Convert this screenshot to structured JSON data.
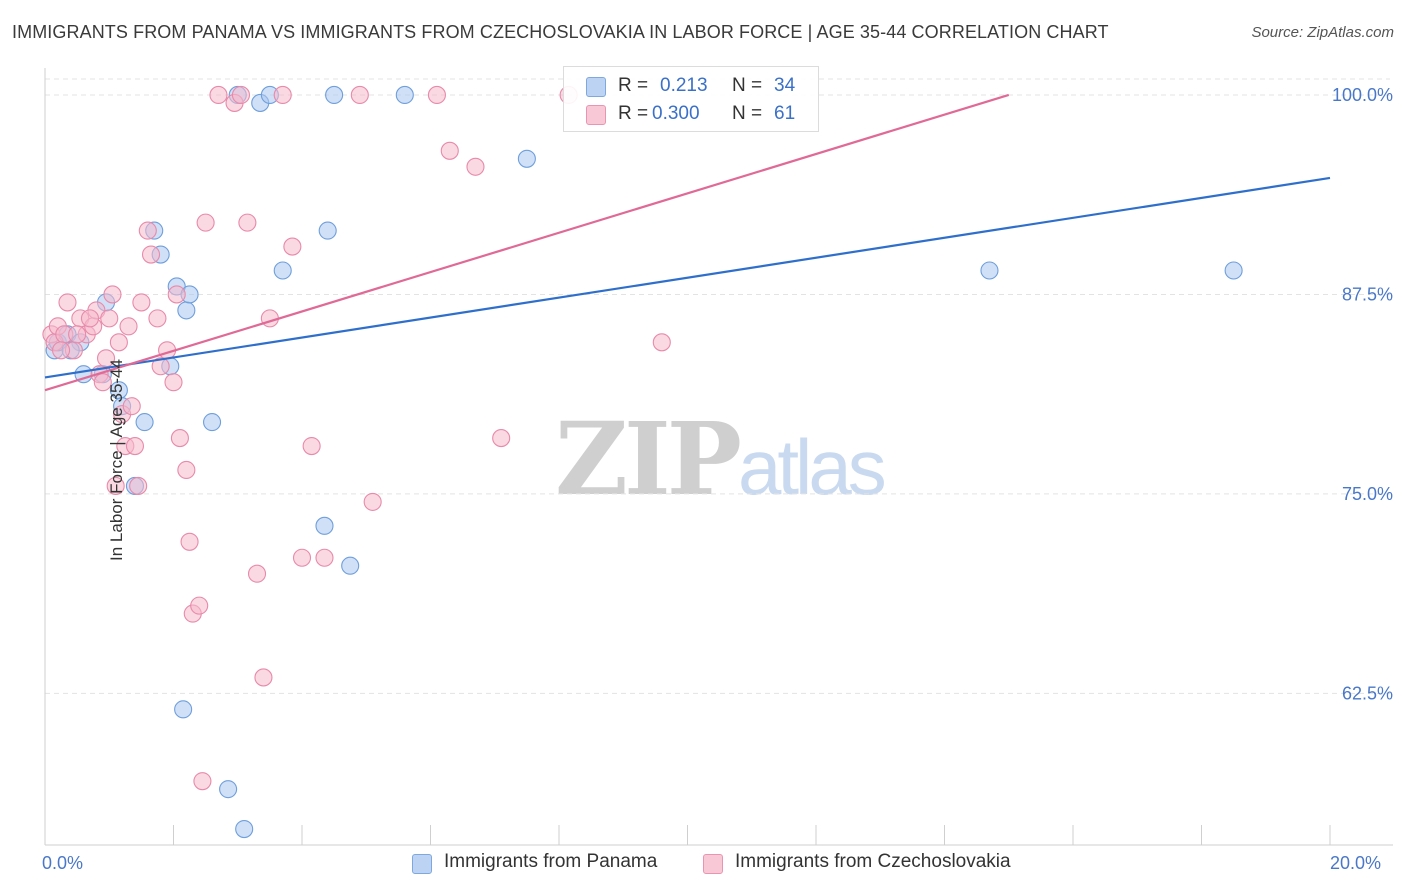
{
  "header": {
    "title": "IMMIGRANTS FROM PANAMA VS IMMIGRANTS FROM CZECHOSLOVAKIA IN LABOR FORCE | AGE 35-44 CORRELATION CHART",
    "source": "Source: ZipAtlas.com"
  },
  "watermark": {
    "zip": "ZIP",
    "atlas": "atlas"
  },
  "legend": {
    "panama": {
      "r_label": "R =",
      "r_value": "0.213",
      "n_label": "N =",
      "n_value": "34"
    },
    "czech": {
      "r_label": "R =",
      "r_value": "0.300",
      "n_label": "N =",
      "n_value": "61"
    }
  },
  "colors": {
    "panama_fill": "#a9c7f0",
    "panama_stroke": "#6f9fdc",
    "panama_line": "#2f6fcc",
    "czech_fill": "#f6b9cc",
    "czech_stroke": "#e88aaa",
    "czech_line": "#e06a95",
    "tick_label": "#4a78c8",
    "grid": "#e3e3e3"
  },
  "chart_data": {
    "type": "scatter",
    "title": "IMMIGRANTS FROM PANAMA VS IMMIGRANTS FROM CZECHOSLOVAKIA IN LABOR FORCE | AGE 35-44 CORRELATION CHART",
    "xlabel": "",
    "ylabel": "In Labor Force | Age 35-44",
    "xlim": [
      0,
      20
    ],
    "ylim": [
      53,
      101
    ],
    "x_tick_labels": [
      "0.0%",
      "20.0%"
    ],
    "y_ticks": [
      62.5,
      75.0,
      87.5,
      100.0
    ],
    "y_tick_labels": [
      "62.5%",
      "75.0%",
      "87.5%",
      "100.0%"
    ],
    "series": [
      {
        "name": "Immigrants from Panama",
        "r": 0.213,
        "n": 34,
        "trend": {
          "x": [
            0.0,
            20.0
          ],
          "y": [
            82.3,
            94.8
          ]
        },
        "points": [
          [
            0.15,
            84.0
          ],
          [
            0.2,
            84.5
          ],
          [
            0.35,
            85.0
          ],
          [
            0.55,
            84.5
          ],
          [
            0.6,
            82.5
          ],
          [
            0.9,
            82.5
          ],
          [
            0.95,
            87.0
          ],
          [
            1.15,
            81.5
          ],
          [
            1.2,
            80.5
          ],
          [
            1.4,
            75.5
          ],
          [
            1.55,
            79.5
          ],
          [
            1.7,
            91.5
          ],
          [
            1.8,
            90.0
          ],
          [
            1.95,
            83.0
          ],
          [
            2.05,
            88.0
          ],
          [
            2.2,
            86.5
          ],
          [
            2.25,
            87.5
          ],
          [
            2.6,
            79.5
          ],
          [
            3.0,
            100.0
          ],
          [
            3.35,
            99.5
          ],
          [
            3.5,
            100.0
          ],
          [
            3.7,
            89.0
          ],
          [
            4.4,
            91.5
          ],
          [
            4.35,
            73.0
          ],
          [
            4.5,
            100.0
          ],
          [
            4.75,
            70.5
          ],
          [
            5.6,
            100.0
          ],
          [
            7.5,
            96.0
          ],
          [
            14.7,
            89.0
          ],
          [
            18.5,
            89.0
          ],
          [
            2.15,
            61.5
          ],
          [
            2.85,
            56.5
          ],
          [
            3.1,
            54.0
          ],
          [
            0.4,
            84.0
          ]
        ]
      },
      {
        "name": "Immigrants from Czechoslovakia",
        "r": 0.3,
        "n": 61,
        "trend": {
          "x": [
            0.0,
            15.0
          ],
          "y": [
            81.5,
            100.0
          ]
        },
        "points": [
          [
            0.1,
            85.0
          ],
          [
            0.15,
            84.5
          ],
          [
            0.2,
            85.5
          ],
          [
            0.3,
            85.0
          ],
          [
            0.35,
            87.0
          ],
          [
            0.45,
            84.0
          ],
          [
            0.55,
            86.0
          ],
          [
            0.65,
            85.0
          ],
          [
            0.75,
            85.5
          ],
          [
            0.8,
            86.5
          ],
          [
            0.85,
            82.5
          ],
          [
            0.9,
            82.0
          ],
          [
            0.95,
            83.5
          ],
          [
            1.0,
            86.0
          ],
          [
            1.05,
            87.5
          ],
          [
            1.15,
            84.5
          ],
          [
            1.2,
            80.0
          ],
          [
            1.25,
            78.0
          ],
          [
            1.3,
            85.5
          ],
          [
            1.35,
            80.5
          ],
          [
            1.4,
            78.0
          ],
          [
            1.45,
            75.5
          ],
          [
            1.5,
            87.0
          ],
          [
            1.6,
            91.5
          ],
          [
            1.65,
            90.0
          ],
          [
            1.75,
            86.0
          ],
          [
            1.8,
            83.0
          ],
          [
            1.9,
            84.0
          ],
          [
            2.0,
            82.0
          ],
          [
            2.05,
            87.5
          ],
          [
            2.1,
            78.5
          ],
          [
            2.2,
            76.5
          ],
          [
            2.25,
            72.0
          ],
          [
            2.3,
            67.5
          ],
          [
            2.4,
            68.0
          ],
          [
            2.45,
            57.0
          ],
          [
            2.5,
            92.0
          ],
          [
            2.7,
            100.0
          ],
          [
            2.95,
            99.5
          ],
          [
            3.05,
            100.0
          ],
          [
            3.15,
            92.0
          ],
          [
            3.3,
            70.0
          ],
          [
            3.4,
            63.5
          ],
          [
            3.5,
            86.0
          ],
          [
            3.7,
            100.0
          ],
          [
            3.85,
            90.5
          ],
          [
            4.0,
            71.0
          ],
          [
            4.15,
            78.0
          ],
          [
            4.35,
            71.0
          ],
          [
            4.9,
            100.0
          ],
          [
            5.1,
            74.5
          ],
          [
            6.1,
            100.0
          ],
          [
            6.3,
            96.5
          ],
          [
            6.7,
            95.5
          ],
          [
            7.1,
            78.5
          ],
          [
            8.15,
            100.0
          ],
          [
            9.6,
            84.5
          ],
          [
            1.1,
            75.5
          ],
          [
            0.25,
            84.0
          ],
          [
            0.5,
            85.0
          ],
          [
            0.7,
            86.0
          ]
        ]
      }
    ]
  },
  "bottom_legend": {
    "panama_label": "Immigrants from Panama",
    "czech_label": "Immigrants from Czechoslovakia"
  }
}
